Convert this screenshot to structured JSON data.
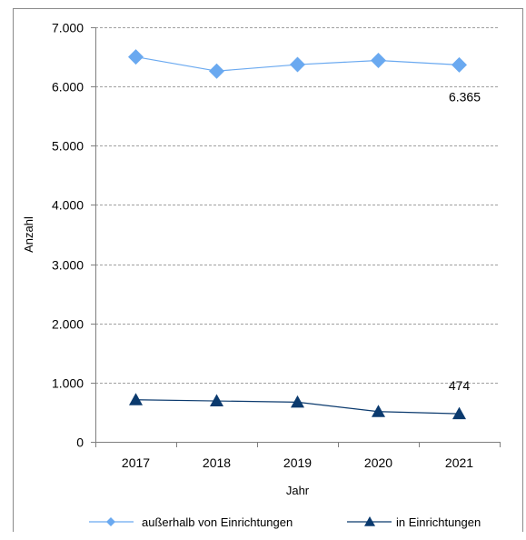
{
  "chart_data": {
    "type": "line",
    "title": "",
    "xlabel": "Jahr",
    "ylabel": "Anzahl",
    "ylim": [
      0,
      7000
    ],
    "y_ticks": [
      0,
      1000,
      2000,
      3000,
      4000,
      5000,
      6000,
      7000
    ],
    "y_tick_labels": [
      "0",
      "1.000",
      "2.000",
      "3.000",
      "4.000",
      "5.000",
      "6.000",
      "7.000"
    ],
    "categories": [
      "2017",
      "2018",
      "2019",
      "2020",
      "2021"
    ],
    "grid": true,
    "legend_position": "bottom",
    "series": [
      {
        "name": "außerhalb von Einrichtungen",
        "values": [
          6500,
          6260,
          6370,
          6440,
          6365
        ],
        "color": "#6aa9f0",
        "marker": "diamond",
        "end_label": "6.365"
      },
      {
        "name": "in Einrichtungen",
        "values": [
          710,
          690,
          670,
          510,
          474
        ],
        "color": "#0b3a6e",
        "marker": "triangle",
        "end_label": "474"
      }
    ]
  }
}
